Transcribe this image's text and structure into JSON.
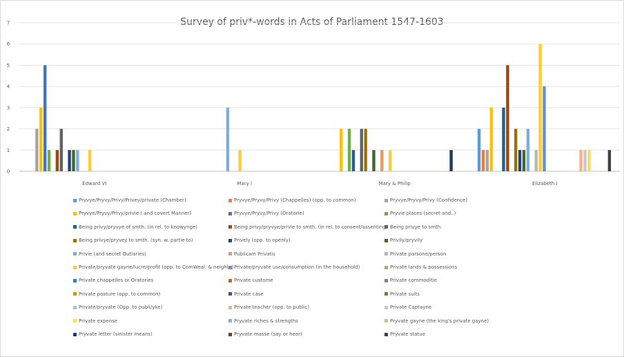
{
  "chart_data": {
    "type": "bar",
    "title": "Survey of priv*-words in Acts of Parliament 1547-1603",
    "categories": [
      "Edward VI",
      "Mary I",
      "Mary & Philip",
      "Elizabeth I"
    ],
    "ylim": [
      0,
      7
    ],
    "yticks": [
      0,
      1,
      2,
      3,
      4,
      5,
      6,
      7
    ],
    "grid": true,
    "legend_position": "bottom",
    "series": [
      {
        "name": "Pryvye/Pryvy/Privy/Privey/private (Chamber)",
        "color": "#5B9BD5",
        "values": [
          0,
          0,
          0,
          2
        ]
      },
      {
        "name": "Pryvye/Pryvy/Privy  (Chappelles) (opp. to common)",
        "color": "#ED7D31",
        "values": [
          0,
          0,
          0,
          1
        ]
      },
      {
        "name": "Pryvye/Pryvy/Privy  (Confidence)",
        "color": "#A5A5A5",
        "values": [
          2,
          0,
          0,
          1
        ]
      },
      {
        "name": "Pryvye/Pryvy/Privy/privie ( and covert Manner)",
        "color": "#FFC000",
        "values": [
          3,
          0,
          2,
          3
        ]
      },
      {
        "name": "Pryvye/Pryvy/Privy  (Oratorie)",
        "color": "#4472C4",
        "values": [
          5,
          0,
          0,
          0
        ]
      },
      {
        "name": "Pryvie places (secret and..)",
        "color": "#70AD47",
        "values": [
          1,
          0,
          2,
          0
        ]
      },
      {
        "name": "Being privy/pryvye of smth. (in rel. to knowynge)",
        "color": "#255E91",
        "values": [
          0,
          0,
          1,
          3
        ]
      },
      {
        "name": "Being privy/pryvye/privie to smth. (in rel. to consent/assenting)",
        "color": "#9E480E",
        "values": [
          1,
          0,
          0,
          5
        ]
      },
      {
        "name": "Being privye to smth.",
        "color": "#636363",
        "values": [
          2,
          0,
          2,
          0
        ]
      },
      {
        "name": "Being privye/pryvey to smth. (syn. w. partie to)",
        "color": "#997300",
        "values": [
          0,
          0,
          2,
          2
        ]
      },
      {
        "name": "Prively (opp. to openly)",
        "color": "#264478",
        "values": [
          1,
          0,
          0,
          1
        ]
      },
      {
        "name": "Privily/pryvily",
        "color": "#43682B",
        "values": [
          1,
          0,
          1,
          1
        ]
      },
      {
        "name": "Privie (and secret Outlaries)",
        "color": "#7CAFDD",
        "values": [
          1,
          3,
          0,
          2
        ]
      },
      {
        "name": "Publicam Privatis",
        "color": "#F1975A",
        "values": [
          0,
          0,
          1,
          0
        ]
      },
      {
        "name": "Private parsone/person",
        "color": "#B7B7B7",
        "values": [
          0,
          0,
          0,
          1
        ]
      },
      {
        "name": "Private/pryvate gayne/lucre/profit (opp. to ComWeal. & neighb.)",
        "color": "#FFCD33",
        "values": [
          1,
          1,
          1,
          6
        ]
      },
      {
        "name": "Private/pryvate use/consumption (in the household)",
        "color": "#698ED0",
        "values": [
          0,
          0,
          0,
          4
        ]
      },
      {
        "name": "Private lands & possessions",
        "color": "#8CC168",
        "values": [
          0,
          0,
          0,
          0
        ]
      },
      {
        "name": "Private chappelles or Oratories",
        "color": "#327DC2",
        "values": [
          0,
          0,
          0,
          0
        ]
      },
      {
        "name": "Private custome",
        "color": "#D26012",
        "values": [
          0,
          0,
          0,
          0
        ]
      },
      {
        "name": "Private commoditie",
        "color": "#848484",
        "values": [
          0,
          0,
          0,
          0
        ]
      },
      {
        "name": "Private pasture (opp. to common)",
        "color": "#CC9A00",
        "values": [
          0,
          0,
          0,
          0
        ]
      },
      {
        "name": "Private case",
        "color": "#335AA1",
        "values": [
          0,
          0,
          0,
          0
        ]
      },
      {
        "name": "Private suits",
        "color": "#5A8A39",
        "values": [
          0,
          0,
          0,
          0
        ]
      },
      {
        "name": "Private/pryvate (Opp. to publi/yke)",
        "color": "#9DC3E6",
        "values": [
          0,
          0,
          0,
          0
        ]
      },
      {
        "name": "Private teacher (opp. to public)",
        "color": "#F4B183",
        "values": [
          0,
          0,
          0,
          1
        ]
      },
      {
        "name": "Private Captayne",
        "color": "#C9C9C9",
        "values": [
          0,
          0,
          0,
          1
        ]
      },
      {
        "name": "Private expense",
        "color": "#FFD966",
        "values": [
          0,
          0,
          0,
          1
        ]
      },
      {
        "name": "Pryvate riches & strengths",
        "color": "#8FAADC",
        "values": [
          0,
          0,
          0,
          0
        ]
      },
      {
        "name": "Pryvate gayne (the king's private gayne)",
        "color": "#A9D18E",
        "values": [
          0,
          0,
          0,
          0
        ]
      },
      {
        "name": "Pryvate letter (sinister means)",
        "color": "#1F3864",
        "values": [
          0,
          0,
          1,
          0
        ]
      },
      {
        "name": "Pryvate masse (say or hear)",
        "color": "#843C0C",
        "values": [
          0,
          0,
          0,
          0
        ]
      },
      {
        "name": "Pryvate statue",
        "color": "#404040",
        "values": [
          0,
          0,
          0,
          1
        ]
      }
    ]
  }
}
